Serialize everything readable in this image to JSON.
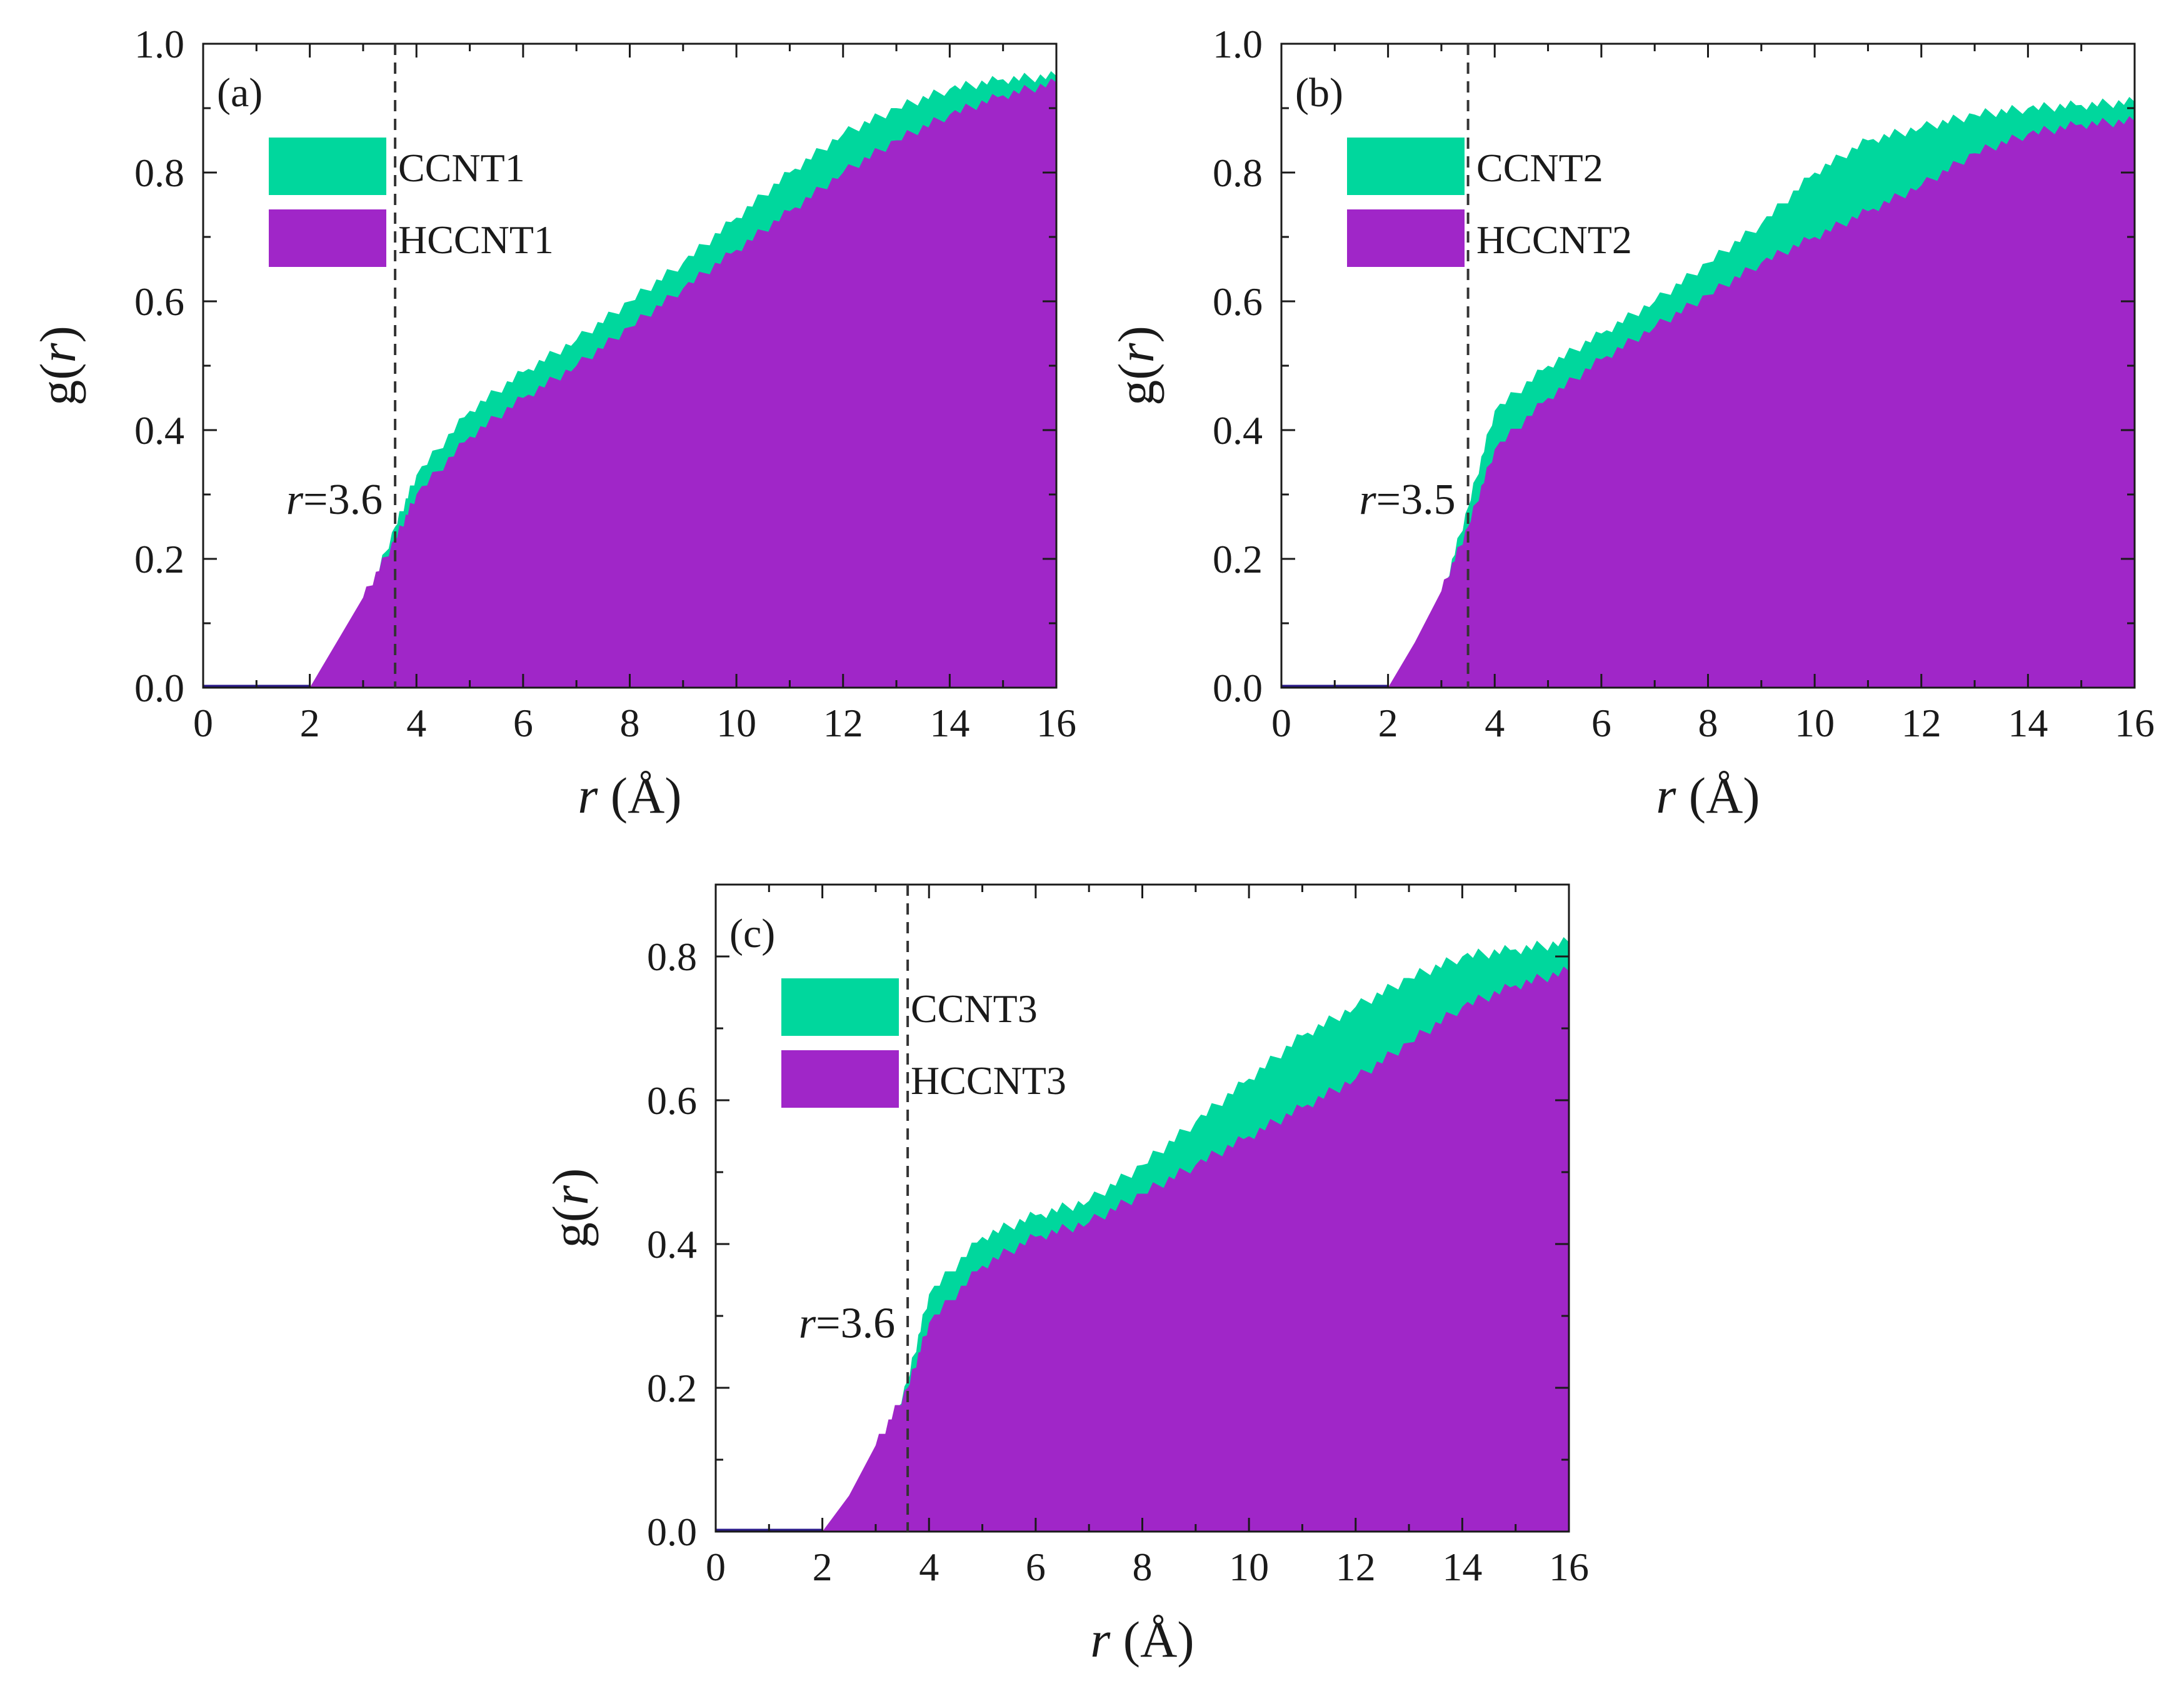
{
  "chart_data": [
    {
      "type": "area",
      "panel_label": "(a)",
      "xlabel_var": "r",
      "xlabel_unit": " (Å)",
      "ylabel_var_left": "g(",
      "ylabel_var_mid": "r",
      "ylabel_var_right": ")",
      "xlim": [
        0,
        16
      ],
      "ylim": [
        0,
        1.0
      ],
      "xticks": [
        0,
        2,
        4,
        6,
        8,
        10,
        12,
        14,
        16
      ],
      "yticks": [
        0.0,
        0.2,
        0.4,
        0.6,
        0.8,
        1.0
      ],
      "ytick_labels": [
        "0.0",
        "0.2",
        "0.4",
        "0.6",
        "0.8",
        "1.0"
      ],
      "annotation": {
        "var": "r",
        "text": "=3.6",
        "x": 3.6
      },
      "series": [
        {
          "name": "CCNT1",
          "color": "#00d79d",
          "x": [
            0,
            2.0,
            2.6,
            3.0,
            3.6,
            4.0,
            5.0,
            6.0,
            7.0,
            8.0,
            9.0,
            10.0,
            11.0,
            12.0,
            13.0,
            14.0,
            15.0,
            16.0
          ],
          "y": [
            0,
            0.0,
            0.0,
            0.12,
            0.25,
            0.33,
            0.43,
            0.49,
            0.54,
            0.6,
            0.66,
            0.73,
            0.8,
            0.86,
            0.9,
            0.93,
            0.945,
            0.95
          ]
        },
        {
          "name": "HCCNT1",
          "color": "#a026c8",
          "x": [
            0,
            2.0,
            2.5,
            3.0,
            3.6,
            4.0,
            5.0,
            6.0,
            7.0,
            8.0,
            9.0,
            10.0,
            11.0,
            12.0,
            13.0,
            14.0,
            15.0,
            16.0
          ],
          "y": [
            0,
            0.0,
            0.07,
            0.14,
            0.23,
            0.3,
            0.39,
            0.45,
            0.5,
            0.56,
            0.62,
            0.68,
            0.74,
            0.8,
            0.85,
            0.89,
            0.92,
            0.94
          ]
        }
      ]
    },
    {
      "type": "area",
      "panel_label": "(b)",
      "xlabel_var": "r",
      "xlabel_unit": " (Å)",
      "ylabel_var_left": "g(",
      "ylabel_var_mid": "r",
      "ylabel_var_right": ")",
      "xlim": [
        0,
        16
      ],
      "ylim": [
        0,
        1.0
      ],
      "xticks": [
        0,
        2,
        4,
        6,
        8,
        10,
        12,
        14,
        16
      ],
      "yticks": [
        0.0,
        0.2,
        0.4,
        0.6,
        0.8,
        1.0
      ],
      "ytick_labels": [
        "0.0",
        "0.2",
        "0.4",
        "0.6",
        "0.8",
        "1.0"
      ],
      "annotation": {
        "var": "r",
        "text": "=3.5",
        "x": 3.5
      },
      "series": [
        {
          "name": "CCNT2",
          "color": "#00d79d",
          "x": [
            0,
            2.0,
            2.6,
            3.0,
            3.5,
            4.0,
            5.0,
            6.0,
            7.0,
            8.0,
            9.0,
            10.0,
            11.0,
            12.0,
            13.0,
            14.0,
            15.0,
            16.0
          ],
          "y": [
            0,
            0.0,
            0.0,
            0.14,
            0.28,
            0.43,
            0.5,
            0.55,
            0.6,
            0.66,
            0.72,
            0.8,
            0.85,
            0.87,
            0.89,
            0.9,
            0.905,
            0.91
          ]
        },
        {
          "name": "HCCNT2",
          "color": "#a026c8",
          "x": [
            0,
            2.0,
            2.5,
            3.0,
            3.5,
            4.0,
            5.0,
            6.0,
            7.0,
            8.0,
            9.0,
            10.0,
            11.0,
            12.0,
            13.0,
            14.0,
            15.0,
            16.0
          ],
          "y": [
            0,
            0.0,
            0.07,
            0.15,
            0.25,
            0.37,
            0.45,
            0.51,
            0.56,
            0.61,
            0.66,
            0.7,
            0.74,
            0.78,
            0.83,
            0.86,
            0.875,
            0.88
          ]
        }
      ]
    },
    {
      "type": "area",
      "panel_label": "(c)",
      "xlabel_var": "r",
      "xlabel_unit": " (Å)",
      "ylabel_var_left": "g(",
      "ylabel_var_mid": "r",
      "ylabel_var_right": ")",
      "xlim": [
        0,
        16
      ],
      "ylim": [
        0,
        0.9
      ],
      "xticks": [
        0,
        2,
        4,
        6,
        8,
        10,
        12,
        14,
        16
      ],
      "yticks": [
        0.0,
        0.2,
        0.4,
        0.6,
        0.8
      ],
      "ytick_labels": [
        "0.0",
        "0.2",
        "0.4",
        "0.6",
        "0.8"
      ],
      "annotation": {
        "var": "r",
        "text": "=3.6",
        "x": 3.6
      },
      "series": [
        {
          "name": "CCNT3",
          "color": "#00d79d",
          "x": [
            0,
            2.0,
            2.6,
            3.0,
            3.6,
            4.0,
            5.0,
            6.0,
            7.0,
            8.0,
            9.0,
            10.0,
            11.0,
            12.0,
            13.0,
            14.0,
            15.0,
            16.0
          ],
          "y": [
            0,
            0.0,
            0.0,
            0.09,
            0.21,
            0.33,
            0.41,
            0.44,
            0.46,
            0.51,
            0.57,
            0.63,
            0.69,
            0.73,
            0.77,
            0.8,
            0.81,
            0.82
          ]
        },
        {
          "name": "HCCNT3",
          "color": "#a026c8",
          "x": [
            0,
            2.0,
            2.5,
            3.0,
            3.6,
            4.0,
            5.0,
            6.0,
            7.0,
            8.0,
            9.0,
            10.0,
            11.0,
            12.0,
            13.0,
            14.0,
            15.0,
            16.0
          ],
          "y": [
            0,
            0.0,
            0.05,
            0.12,
            0.2,
            0.29,
            0.37,
            0.41,
            0.43,
            0.47,
            0.51,
            0.55,
            0.59,
            0.63,
            0.68,
            0.73,
            0.76,
            0.78
          ]
        }
      ]
    }
  ]
}
